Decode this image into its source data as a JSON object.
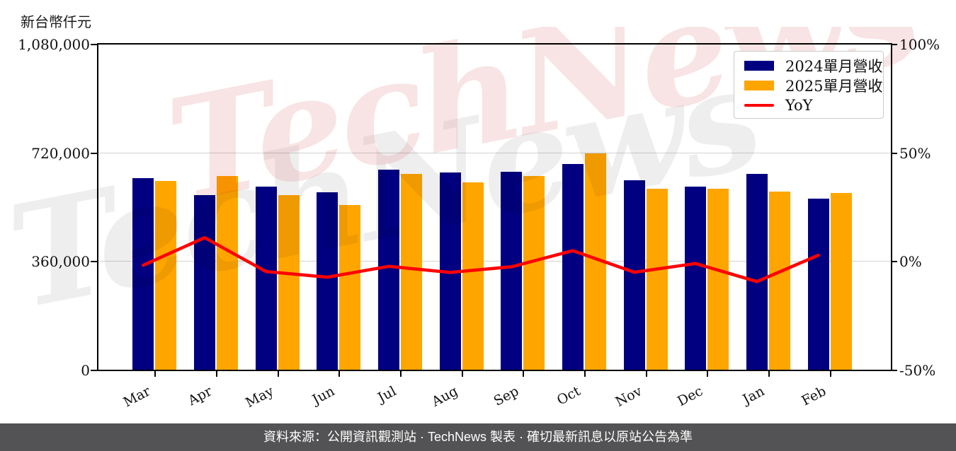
{
  "unit_label": "新台幣仟元",
  "watermark_text": "TechNews",
  "footer": {
    "text": "資料來源：公開資訊觀測站 · TechNews 製表 · 確切最新訊息以原站公告為準"
  },
  "legend": {
    "items": [
      {
        "label": "2024單月營收",
        "color": "#000080",
        "type": "box"
      },
      {
        "label": "2025單月營收",
        "color": "#FFA500",
        "type": "box"
      },
      {
        "label": "YoY",
        "color": "#FF0000",
        "type": "line"
      }
    ]
  },
  "y_axis_left": {
    "tick_labels": [
      "0",
      "360,000",
      "720,000",
      "1,080,000"
    ],
    "tick_values": [
      0,
      360000,
      720000,
      1080000
    ]
  },
  "y_axis_right": {
    "tick_labels": [
      "-50%",
      "0%",
      "50%",
      "100%"
    ],
    "tick_values": [
      -50,
      0,
      50,
      100
    ]
  },
  "chart_data": {
    "type": "bar+line",
    "categories": [
      "Mar",
      "Apr",
      "May",
      "Jun",
      "Jul",
      "Aug",
      "Sep",
      "Oct",
      "Nov",
      "Dec",
      "Jan",
      "Feb"
    ],
    "series": [
      {
        "name": "2024單月營收",
        "type": "bar",
        "axis": "left",
        "color": "#000080",
        "values": [
          635000,
          578000,
          606000,
          589000,
          664000,
          654000,
          656000,
          681000,
          629000,
          606000,
          650000,
          568000
        ]
      },
      {
        "name": "2025單月營收",
        "type": "bar",
        "axis": "left",
        "color": "#FFA500",
        "values": [
          625000,
          642000,
          579000,
          547000,
          650000,
          622000,
          641000,
          716000,
          599000,
          601000,
          591000,
          585000
        ]
      },
      {
        "name": "YoY",
        "type": "line",
        "axis": "right",
        "color": "#FF0000",
        "values": [
          -1.6,
          11.1,
          -4.5,
          -7.1,
          -2.1,
          -4.9,
          -2.3,
          5.1,
          -4.8,
          -0.8,
          -9.1,
          3.0
        ]
      }
    ],
    "ylabel_left": "新台幣仟元",
    "ylim_left": [
      0,
      1080000
    ],
    "ylim_right": [
      -50,
      100
    ],
    "grid": true,
    "legend_position": "upper right"
  }
}
